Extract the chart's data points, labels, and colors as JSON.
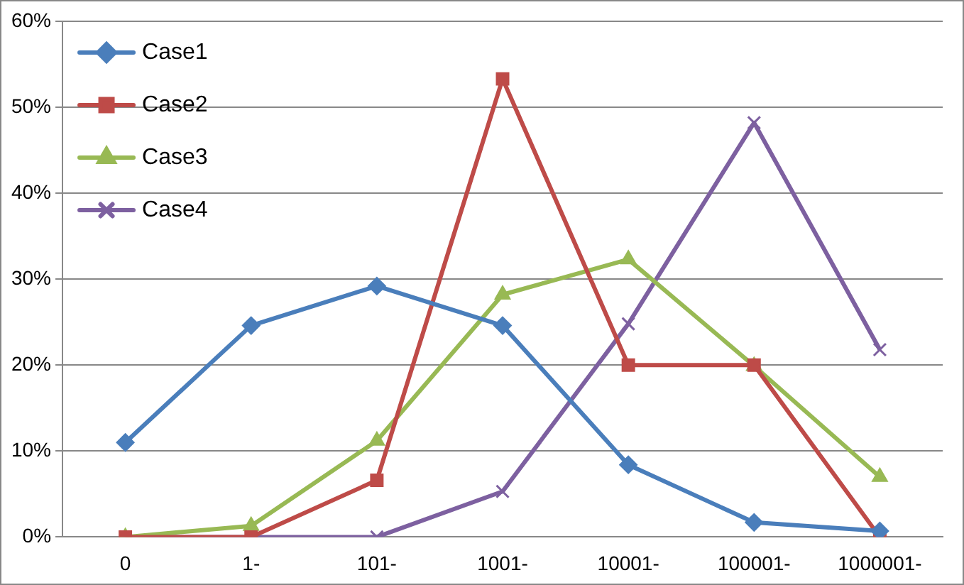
{
  "chart_data": {
    "type": "line",
    "categories": [
      "0",
      "1-",
      "101-",
      "1001-",
      "10001-",
      "100001-",
      "1000001-"
    ],
    "series": [
      {
        "name": "Case1",
        "color": "#4a7ebb",
        "marker": "diamond",
        "values": [
          11.0,
          24.6,
          29.2,
          24.6,
          8.4,
          1.7,
          0.7
        ]
      },
      {
        "name": "Case2",
        "color": "#be4b48",
        "marker": "square",
        "values": [
          0,
          0,
          6.6,
          53.3,
          20.0,
          20.0,
          0
        ]
      },
      {
        "name": "Case3",
        "color": "#98b954",
        "marker": "triangle",
        "values": [
          0,
          1.3,
          11.2,
          28.2,
          32.3,
          19.9,
          7.0
        ]
      },
      {
        "name": "Case4",
        "color": "#7d60a0",
        "marker": "cross",
        "values": [
          0,
          0,
          0,
          5.3,
          24.8,
          48.2,
          21.8
        ]
      }
    ],
    "ylim": [
      0,
      60
    ],
    "yticks": [
      {
        "value": 0,
        "label": "0%"
      },
      {
        "value": 10,
        "label": "10%"
      },
      {
        "value": 20,
        "label": "20%"
      },
      {
        "value": 30,
        "label": "30%"
      },
      {
        "value": 40,
        "label": "40%"
      },
      {
        "value": 50,
        "label": "50%"
      },
      {
        "value": 60,
        "label": "60%"
      }
    ],
    "grid": "y",
    "legend": "top left"
  }
}
